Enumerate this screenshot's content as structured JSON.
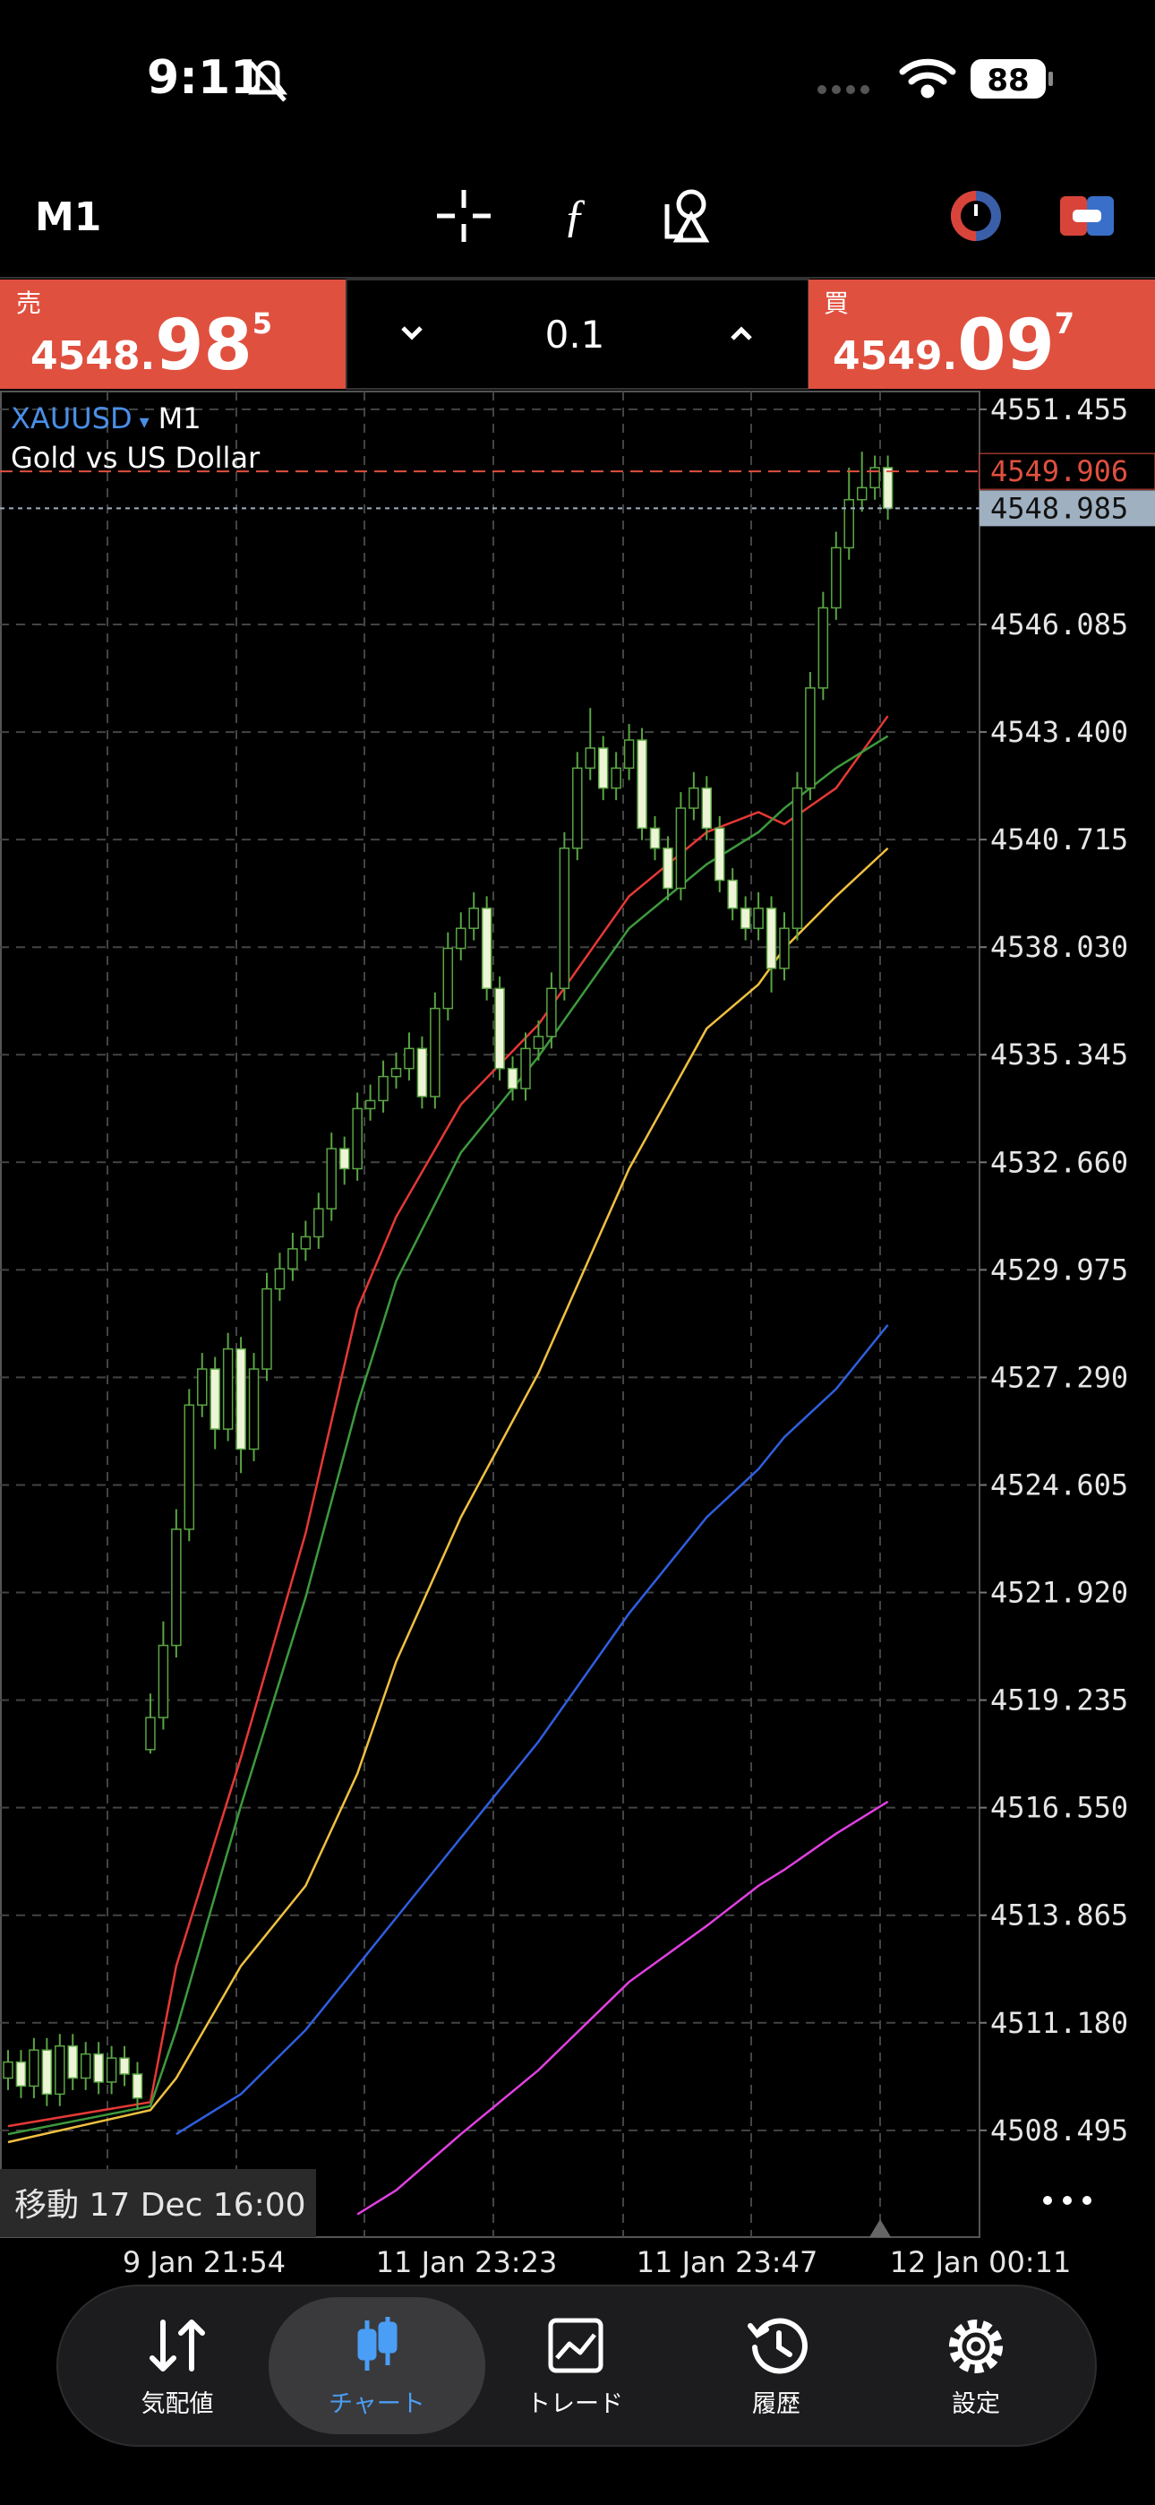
{
  "status_bar": {
    "time": "9:11",
    "battery": "88"
  },
  "toolbar": {
    "timeframe": "M1"
  },
  "trade_panel": {
    "sell": {
      "label": "売",
      "price_small": "4548.",
      "price_big": "98",
      "price_sup": "5"
    },
    "volume": "0.1",
    "buy": {
      "label": "買",
      "price_small": "4549.",
      "price_big": "09",
      "price_sup": "7"
    }
  },
  "chart_data": {
    "type": "candlestick",
    "symbol": "XAUUSD",
    "timeframe": "M1",
    "title": "Gold vs US Dollar",
    "bull_color": "#000000",
    "bear_color": "#eef5d6",
    "wick_color": "#5aa444",
    "grid": true,
    "open": [
      4509.8,
      4510.2,
      4509.6,
      4510.5,
      4509.4,
      4510.6,
      4509.8,
      4510.4,
      4509.7,
      4510.3,
      4509.9,
      4518.0,
      4518.8,
      4520.6,
      4523.5,
      4526.6,
      4527.5,
      4526.0,
      4528.0,
      4525.5,
      4527.5,
      4529.5,
      4530.0,
      4530.5,
      4530.8,
      4531.5,
      4533.0,
      4532.5,
      4534.0,
      4534.2,
      4534.8,
      4535.0,
      4535.5,
      4534.3,
      4536.5,
      4538.0,
      4538.5,
      4539.0,
      4537.0,
      4535.0,
      4534.5,
      4535.5,
      4535.8,
      4537.0,
      4540.5,
      4542.5,
      4543.0,
      4542.0,
      4542.5,
      4543.2,
      4541.0,
      4540.5,
      4539.5,
      4541.5,
      4542.0,
      4541.0,
      4539.7,
      4539.0,
      4538.5,
      4539.0,
      4537.5,
      4538.5,
      4542.0,
      4544.5,
      4546.5,
      4548.0,
      4549.2,
      4549.5,
      4550.0
    ],
    "high": [
      4510.5,
      4510.5,
      4510.8,
      4510.8,
      4510.9,
      4510.9,
      4510.7,
      4510.7,
      4510.6,
      4510.6,
      4510.2,
      4519.4,
      4521.2,
      4524.0,
      4527.0,
      4527.9,
      4527.8,
      4528.4,
      4528.3,
      4527.9,
      4529.9,
      4530.4,
      4530.9,
      4531.2,
      4531.9,
      4533.4,
      4533.3,
      4534.4,
      4534.6,
      4535.2,
      4535.4,
      4535.9,
      4535.8,
      4536.9,
      4538.4,
      4538.9,
      4539.4,
      4539.3,
      4537.3,
      4535.3,
      4535.9,
      4536.2,
      4537.4,
      4540.9,
      4542.9,
      4544.0,
      4543.3,
      4542.9,
      4543.6,
      4543.5,
      4541.3,
      4540.8,
      4541.9,
      4542.4,
      4542.3,
      4541.3,
      4540.0,
      4539.3,
      4539.4,
      4539.3,
      4538.9,
      4542.4,
      4544.9,
      4546.9,
      4548.4,
      4550.0,
      4550.4,
      4550.3,
      4550.3
    ],
    "low": [
      4509.5,
      4509.3,
      4509.3,
      4509.1,
      4509.1,
      4509.5,
      4509.5,
      4509.4,
      4509.4,
      4509.6,
      4509.0,
      4517.9,
      4518.5,
      4520.3,
      4523.2,
      4526.3,
      4525.5,
      4525.7,
      4524.9,
      4525.2,
      4527.2,
      4529.2,
      4529.7,
      4530.2,
      4530.5,
      4531.2,
      4532.1,
      4532.2,
      4533.7,
      4533.9,
      4534.5,
      4534.7,
      4534.0,
      4534.0,
      4536.2,
      4537.7,
      4538.2,
      4536.7,
      4534.7,
      4534.2,
      4534.2,
      4535.2,
      4535.5,
      4536.7,
      4540.2,
      4542.2,
      4541.7,
      4541.7,
      4542.2,
      4540.7,
      4540.2,
      4539.2,
      4539.2,
      4541.2,
      4540.7,
      4539.4,
      4538.7,
      4538.2,
      4538.2,
      4536.9,
      4537.2,
      4538.2,
      4541.7,
      4544.2,
      4546.2,
      4547.7,
      4548.9,
      4549.2,
      4548.7
    ],
    "close": [
      4510.2,
      4509.6,
      4510.5,
      4509.4,
      4510.6,
      4509.8,
      4510.4,
      4509.7,
      4510.3,
      4509.9,
      4509.3,
      4518.8,
      4520.6,
      4523.5,
      4526.6,
      4527.5,
      4526.0,
      4528.0,
      4525.5,
      4527.5,
      4529.5,
      4530.0,
      4530.5,
      4530.8,
      4531.5,
      4533.0,
      4532.5,
      4534.0,
      4534.2,
      4534.8,
      4535.0,
      4535.5,
      4534.3,
      4536.5,
      4538.0,
      4538.5,
      4539.0,
      4537.0,
      4535.0,
      4534.5,
      4535.5,
      4535.8,
      4537.0,
      4540.5,
      4542.5,
      4543.0,
      4542.0,
      4542.5,
      4543.2,
      4541.0,
      4540.5,
      4539.5,
      4541.5,
      4542.0,
      4541.0,
      4539.7,
      4539.0,
      4538.5,
      4539.0,
      4537.5,
      4538.5,
      4542.0,
      4544.5,
      4546.5,
      4548.0,
      4549.2,
      4549.5,
      4550.0,
      4548.985
    ],
    "ylim": [
      4505.83,
      4551.9
    ],
    "yticks": [
      4551.455,
      4546.085,
      {
        "value": 4543.4,
        "label": "4543.400"
      },
      4540.715,
      {
        "value": 4538.03,
        "label": "4538.030"
      },
      4535.345,
      {
        "value": 4532.66,
        "label": "4532.660"
      },
      4529.975,
      {
        "value": 4527.29,
        "label": "4527.290"
      },
      4524.605,
      {
        "value": 4521.92,
        "label": "4521.920"
      },
      4519.235,
      {
        "value": 4516.55,
        "label": "4516.550"
      },
      4513.865,
      {
        "value": 4511.18,
        "label": "4511.180"
      },
      4508.495
    ],
    "price_lines": [
      {
        "value": 4549.906,
        "color": "#e0503f"
      },
      {
        "value": 4548.985,
        "color": "#9fb0c0"
      }
    ],
    "x_labels": [
      "9 Jan 21:54",
      "11 Jan 23:23",
      "11 Jan 23:47",
      "12 Jan 00:11"
    ],
    "moving_averages": {
      "x": [
        0,
        11,
        13,
        18,
        23,
        27,
        30,
        35,
        41,
        48,
        54,
        58,
        60,
        64,
        68
      ],
      "series": [
        {
          "color": "#e53935",
          "values": [
            4508.6,
            4509.2,
            4512.6,
            4517.8,
            4523.4,
            4529.0,
            4531.3,
            4534.1,
            4536.1,
            4539.3,
            4540.9,
            4541.4,
            4541.1,
            4542.0,
            4543.8
          ]
        },
        {
          "color": "#3d9a3d",
          "values": [
            4508.4,
            4509.1,
            4511.0,
            4516.6,
            4521.8,
            4526.6,
            4529.7,
            4532.9,
            4535.3,
            4538.5,
            4540.1,
            4540.9,
            4541.5,
            4542.5,
            4543.3
          ]
        },
        {
          "color": "#f0c040",
          "values": [
            4508.2,
            4509.0,
            4509.8,
            4512.6,
            4514.6,
            4517.4,
            4520.2,
            4523.8,
            4527.4,
            4532.5,
            4536.0,
            4537.1,
            4538.0,
            4539.3,
            4540.5
          ]
        },
        {
          "color": "#2f5fe0",
          "values": [
            null,
            null,
            4508.4,
            4509.4,
            4511.0,
            4512.6,
            4513.8,
            4515.8,
            4518.2,
            4521.4,
            4523.8,
            4525.0,
            4525.8,
            4527.0,
            4528.6
          ]
        },
        {
          "color": "#e040e0",
          "values": [
            null,
            null,
            null,
            null,
            null,
            4506.4,
            4507.0,
            4508.4,
            4510.0,
            4512.2,
            4513.6,
            4514.6,
            4515.0,
            4515.9,
            4516.7
          ]
        }
      ]
    }
  },
  "overlay": {
    "scroll_label": "移動 17 Dec 16:00"
  },
  "nav": {
    "tabs": [
      {
        "label": "気配値"
      },
      {
        "label": "チャート"
      },
      {
        "label": "トレード"
      },
      {
        "label": "履歴"
      },
      {
        "label": "設定"
      }
    ],
    "active": 1
  }
}
